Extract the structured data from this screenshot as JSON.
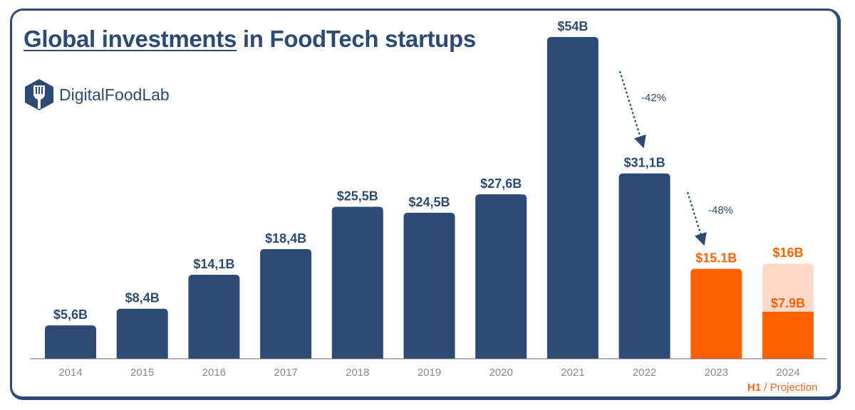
{
  "chart_data": {
    "type": "bar",
    "title_underlined": "Global investments",
    "title_rest": " in FoodTech startups",
    "brand": "DigitalFoodLab",
    "categories": [
      "2014",
      "2015",
      "2016",
      "2017",
      "2018",
      "2019",
      "2020",
      "2021",
      "2022",
      "2023",
      "2024"
    ],
    "values": [
      5.6,
      8.4,
      14.1,
      18.4,
      25.5,
      24.5,
      27.6,
      54,
      31.1,
      15.1,
      16
    ],
    "labels": [
      "$5,6B",
      "$8,4B",
      "$14,1B",
      "$18,4B",
      "$25,5B",
      "$24,5B",
      "$27,6B",
      "$54B",
      "$31,1B",
      "$15.1B",
      "$16B"
    ],
    "h1_2024": {
      "value": 7.9,
      "label": "$7.9B"
    },
    "highlight_from_index": 9,
    "annotations": [
      {
        "text": "-42%",
        "from": "2021",
        "to": "2022"
      },
      {
        "text": "-48%",
        "from": "2022",
        "to": "2023"
      }
    ],
    "xlabel": "",
    "ylabel": "",
    "ylim": [
      0,
      54
    ],
    "grid": false,
    "legend": {
      "h1": "H1",
      "sep": " / ",
      "projection": "Projection"
    },
    "colors": {
      "primary": "#2d4a75",
      "accent": "#ff6200",
      "projection": "#fdd9c9",
      "axis_label": "#8a8a8a",
      "baseline": "#666666"
    }
  }
}
